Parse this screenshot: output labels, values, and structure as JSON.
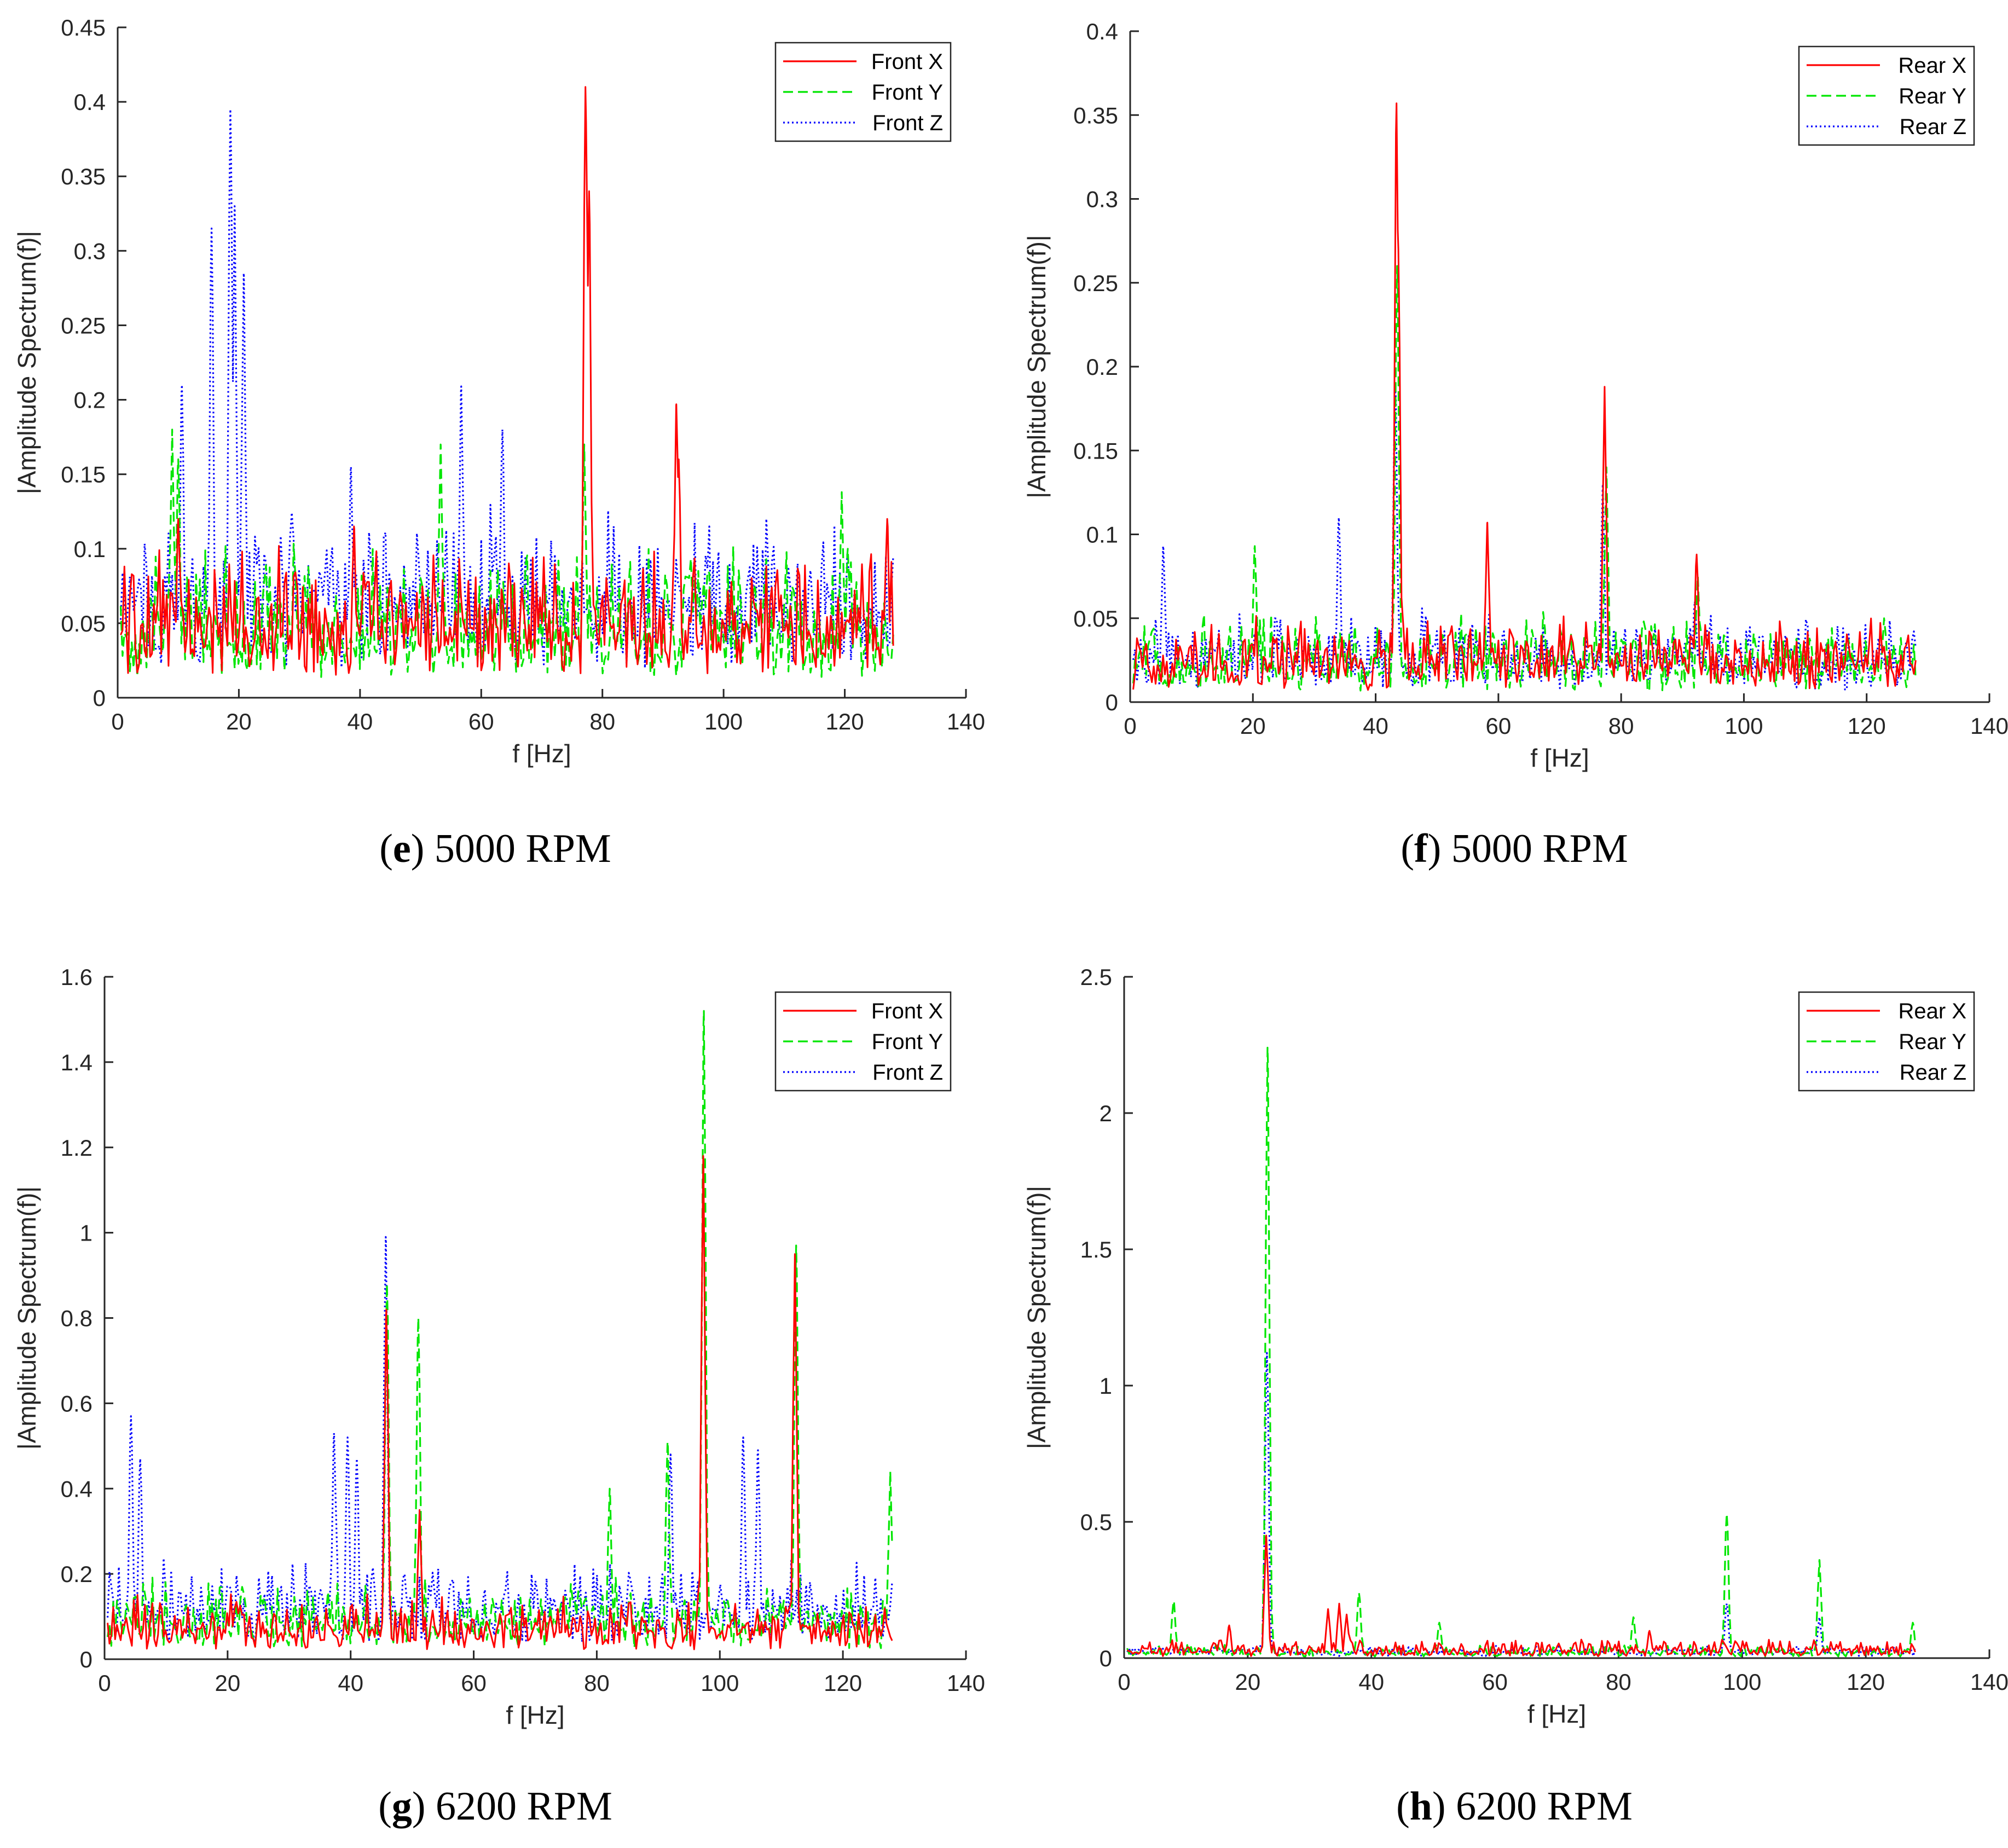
{
  "chart_data": [
    {
      "type": "line",
      "caption_letter": "e",
      "caption_text": " 5000 RPM",
      "xlabel": "f [Hz]",
      "ylabel": "|Amplitude Spectrum(f)|",
      "xlim": [
        0,
        140
      ],
      "ylim": [
        0,
        0.45
      ],
      "xticks": [
        "0",
        "20",
        "40",
        "60",
        "80",
        "100",
        "120",
        "140"
      ],
      "yticks": [
        "0",
        "0.05",
        "0.1",
        "0.15",
        "0.2",
        "0.25",
        "0.3",
        "0.35",
        "0.4",
        "0.45"
      ],
      "grid": false,
      "legend_position": "top-right",
      "series": [
        {
          "name": "Front X",
          "color": "#ff0000",
          "style": "solid",
          "floor": 0.04,
          "noise": 0.035,
          "peaks": [
            [
              77.2,
              0.41
            ],
            [
              77.8,
              0.34
            ],
            [
              92.2,
              0.197
            ],
            [
              92.6,
              0.16
            ],
            [
              127,
              0.12
            ],
            [
              10,
              0.12
            ],
            [
              39,
              0.115
            ]
          ]
        },
        {
          "name": "Front Y",
          "color": "#00e600",
          "style": "dashed",
          "floor": 0.035,
          "noise": 0.04,
          "peaks": [
            [
              9,
              0.18
            ],
            [
              10,
              0.16
            ],
            [
              53.3,
              0.17
            ],
            [
              77,
              0.17
            ],
            [
              119.5,
              0.138
            ],
            [
              120.5,
              0.1
            ]
          ]
        },
        {
          "name": "Front Z",
          "color": "#0000ff",
          "style": "dotted",
          "floor": 0.055,
          "noise": 0.04,
          "peaks": [
            [
              18.6,
              0.395
            ],
            [
              15.5,
              0.315
            ],
            [
              19.3,
              0.33
            ],
            [
              20.8,
              0.285
            ],
            [
              10.6,
              0.21
            ],
            [
              56.7,
              0.209
            ],
            [
              63.5,
              0.18
            ],
            [
              38.5,
              0.155
            ]
          ]
        }
      ]
    },
    {
      "type": "line",
      "caption_letter": "f",
      "caption_text": " 5000 RPM",
      "xlabel": "f [Hz]",
      "ylabel": "|Amplitude Spectrum(f)|",
      "xlim": [
        0,
        140
      ],
      "ylim": [
        0,
        0.4
      ],
      "xticks": [
        "0",
        "20",
        "40",
        "60",
        "80",
        "100",
        "120",
        "140"
      ],
      "yticks": [
        "0",
        "0.05",
        "0.1",
        "0.15",
        "0.2",
        "0.25",
        "0.3",
        "0.35",
        "0.4"
      ],
      "grid": false,
      "legend_position": "top-right",
      "series": [
        {
          "name": "Rear X",
          "color": "#ff0000",
          "style": "solid",
          "floor": 0.02,
          "noise": 0.018,
          "peaks": [
            [
              43.4,
              0.357
            ],
            [
              43.7,
              0.27
            ],
            [
              77.3,
              0.188
            ],
            [
              58.2,
              0.107
            ],
            [
              92.3,
              0.088
            ],
            [
              107,
              0.038
            ]
          ]
        },
        {
          "name": "Rear Y",
          "color": "#00e600",
          "style": "dashed",
          "floor": 0.018,
          "noise": 0.02,
          "peaks": [
            [
              43.5,
              0.26
            ],
            [
              77.6,
              0.14
            ],
            [
              20.3,
              0.093
            ],
            [
              92.5,
              0.075
            ]
          ]
        },
        {
          "name": "Rear Z",
          "color": "#0000ff",
          "style": "dotted",
          "floor": 0.02,
          "noise": 0.02,
          "peaks": [
            [
              43.2,
              0.19
            ],
            [
              34,
              0.11
            ],
            [
              5.4,
              0.093
            ],
            [
              77,
              0.13
            ],
            [
              92,
              0.06
            ]
          ]
        }
      ]
    },
    {
      "type": "line",
      "caption_letter": "g",
      "caption_text": " 6200 RPM",
      "xlabel": "f [Hz]",
      "ylabel": "|Amplitude Spectrum(f)|",
      "xlim": [
        0,
        140
      ],
      "ylim": [
        0,
        1.6
      ],
      "xticks": [
        "0",
        "20",
        "40",
        "60",
        "80",
        "100",
        "120",
        "140"
      ],
      "yticks": [
        "0",
        "0.2",
        "0.4",
        "0.6",
        "0.8",
        "1",
        "1.2",
        "1.4",
        "1.6"
      ],
      "grid": false,
      "legend_position": "top-right",
      "series": [
        {
          "name": "Front X",
          "color": "#ff0000",
          "style": "solid",
          "floor": 0.06,
          "noise": 0.05,
          "peaks": [
            [
              97.3,
              1.18
            ],
            [
              112.2,
              0.95
            ],
            [
              45.8,
              0.82
            ],
            [
              51.2,
              0.35
            ]
          ]
        },
        {
          "name": "Front Y",
          "color": "#00e600",
          "style": "dashed",
          "floor": 0.07,
          "noise": 0.07,
          "peaks": [
            [
              97.4,
              1.52
            ],
            [
              112.4,
              0.97
            ],
            [
              45.9,
              0.88
            ],
            [
              51,
              0.8
            ],
            [
              91.5,
              0.51
            ],
            [
              127.7,
              0.44
            ],
            [
              82.1,
              0.4
            ]
          ]
        },
        {
          "name": "Front Z",
          "color": "#0000ff",
          "style": "dotted",
          "floor": 0.1,
          "noise": 0.08,
          "peaks": [
            [
              45.7,
              0.99
            ],
            [
              4.3,
              0.57
            ],
            [
              5.8,
              0.47
            ],
            [
              37.3,
              0.53
            ],
            [
              39.5,
              0.52
            ],
            [
              41,
              0.47
            ],
            [
              103.8,
              0.52
            ],
            [
              106.2,
              0.49
            ],
            [
              92,
              0.48
            ]
          ]
        }
      ]
    },
    {
      "type": "line",
      "caption_letter": "h",
      "caption_text": " 6200 RPM",
      "xlabel": "f [Hz]",
      "ylabel": "|Amplitude Spectrum(f)|",
      "xlim": [
        0,
        140
      ],
      "ylim": [
        0,
        2.5
      ],
      "xticks": [
        "0",
        "20",
        "40",
        "60",
        "80",
        "100",
        "120",
        "140"
      ],
      "yticks": [
        "0",
        "0.5",
        "1",
        "1.5",
        "2",
        "2.5"
      ],
      "grid": false,
      "legend_position": "top-right",
      "series": [
        {
          "name": "Rear X",
          "color": "#ff0000",
          "style": "solid",
          "floor": 0.02,
          "noise": 0.03,
          "peaks": [
            [
              23,
              0.45
            ],
            [
              34.8,
              0.2
            ],
            [
              33,
              0.18
            ],
            [
              36,
              0.16
            ],
            [
              17,
              0.12
            ],
            [
              85,
              0.1
            ]
          ]
        },
        {
          "name": "Rear Y",
          "color": "#00e600",
          "style": "dashed",
          "floor": 0.015,
          "noise": 0.02,
          "peaks": [
            [
              23.2,
              2.24
            ],
            [
              97.5,
              0.53
            ],
            [
              112.5,
              0.36
            ],
            [
              38,
              0.24
            ],
            [
              8,
              0.21
            ],
            [
              82.4,
              0.15
            ],
            [
              127.6,
              0.13
            ],
            [
              51,
              0.13
            ]
          ]
        },
        {
          "name": "Rear Z",
          "color": "#0000ff",
          "style": "dotted",
          "floor": 0.02,
          "noise": 0.015,
          "peaks": [
            [
              23.1,
              1.12
            ],
            [
              97.5,
              0.2
            ],
            [
              112.5,
              0.15
            ]
          ]
        }
      ]
    }
  ]
}
